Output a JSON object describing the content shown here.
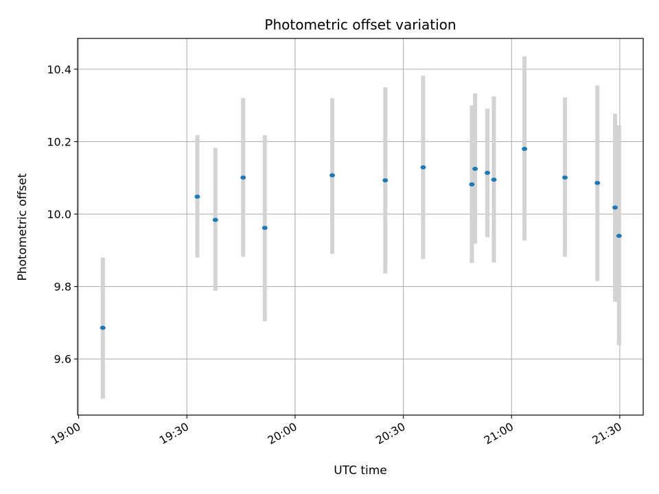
{
  "chart_data": {
    "type": "scatter",
    "title": "Photometric offset variation",
    "xlabel": "UTC time",
    "ylabel": "Photometric offset",
    "x_unit": "UTC time (HH:MM)",
    "xlim": [
      "18:59.7",
      "21:36.5"
    ],
    "ylim": [
      9.445,
      10.485
    ],
    "x_ticks": [
      "19:00",
      "19:30",
      "20:00",
      "20:30",
      "21:00",
      "21:30"
    ],
    "y_ticks": [
      9.6,
      9.8,
      10.0,
      10.2,
      10.4
    ],
    "y_tick_labels": [
      "9.6",
      "9.8",
      "10.0",
      "10.2",
      "10.4"
    ],
    "grid": true,
    "legend": "none",
    "colors": {
      "point": "#1f77b4",
      "errorbar": "#d3d3d3",
      "grid": "#b0b0b0",
      "axes": "#000000"
    },
    "points": [
      {
        "x": "19:06.7",
        "y": 9.686,
        "ylow": 9.49,
        "yhigh": 9.88
      },
      {
        "x": "19:32.9",
        "y": 10.048,
        "ylow": 9.88,
        "yhigh": 10.218
      },
      {
        "x": "19:37.9",
        "y": 9.984,
        "ylow": 9.788,
        "yhigh": 10.183
      },
      {
        "x": "19:45.6",
        "y": 10.101,
        "ylow": 9.882,
        "yhigh": 10.32
      },
      {
        "x": "19:51.6",
        "y": 9.962,
        "ylow": 9.704,
        "yhigh": 10.218
      },
      {
        "x": "20:10.3",
        "y": 10.107,
        "ylow": 9.89,
        "yhigh": 10.32
      },
      {
        "x": "20:25.0",
        "y": 10.093,
        "ylow": 9.836,
        "yhigh": 10.35
      },
      {
        "x": "20:35.5",
        "y": 10.129,
        "ylow": 9.876,
        "yhigh": 10.382
      },
      {
        "x": "20:49.0",
        "y": 10.082,
        "ylow": 9.865,
        "yhigh": 10.3
      },
      {
        "x": "20:49.9",
        "y": 10.125,
        "ylow": 9.918,
        "yhigh": 10.333
      },
      {
        "x": "20:53.3",
        "y": 10.114,
        "ylow": 9.936,
        "yhigh": 10.291
      },
      {
        "x": "20:55.1",
        "y": 10.095,
        "ylow": 9.866,
        "yhigh": 10.325
      },
      {
        "x": "21:03.6",
        "y": 10.18,
        "ylow": 9.927,
        "yhigh": 10.435
      },
      {
        "x": "21:14.8",
        "y": 10.101,
        "ylow": 9.882,
        "yhigh": 10.322
      },
      {
        "x": "21:23.8",
        "y": 10.086,
        "ylow": 9.815,
        "yhigh": 10.355
      },
      {
        "x": "21:28.7",
        "y": 10.018,
        "ylow": 9.758,
        "yhigh": 10.277
      },
      {
        "x": "21:29.8",
        "y": 9.94,
        "ylow": 9.638,
        "yhigh": 10.245
      }
    ]
  }
}
